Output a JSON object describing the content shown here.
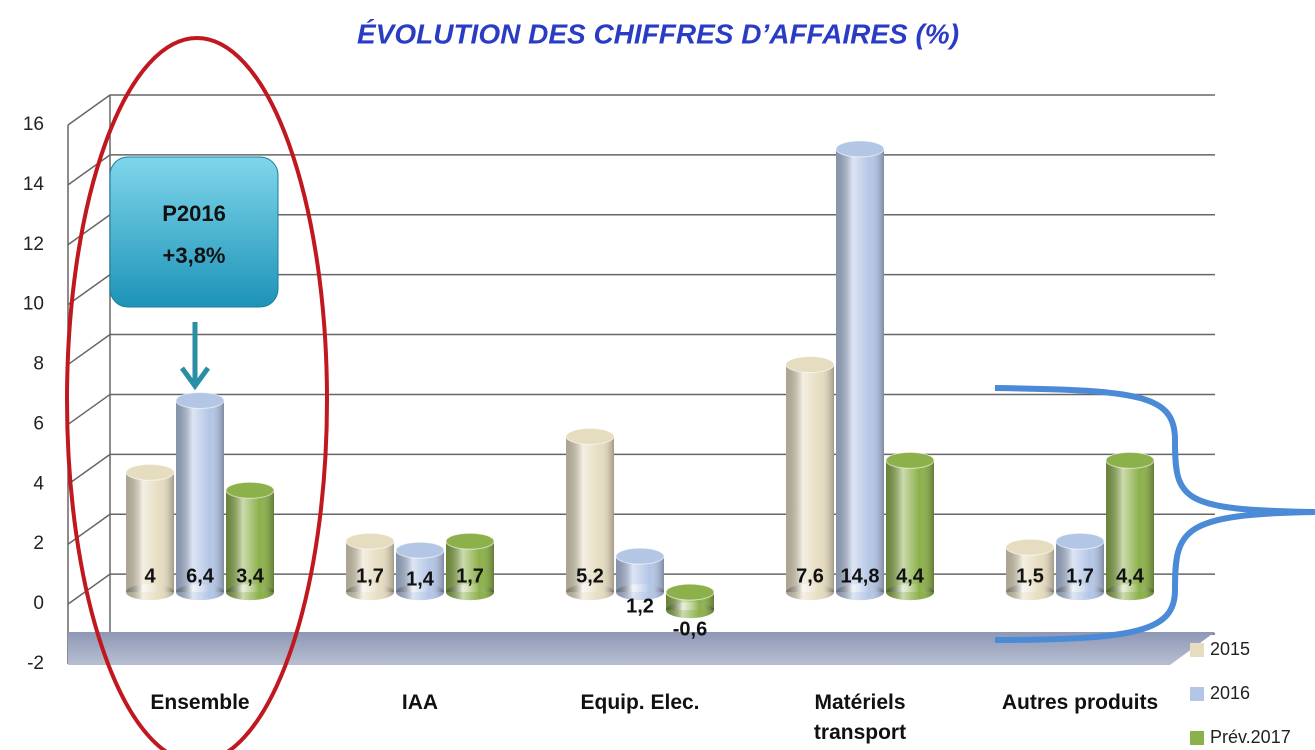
{
  "chart_data": {
    "type": "bar",
    "title": "ÉVOLUTION DES CHIFFRES D’AFFAIRES (%)",
    "categories": [
      "Ensemble",
      "IAA",
      "Equip. Elec.",
      "Matériels transport",
      "Autres produits"
    ],
    "series": [
      {
        "name": "2015",
        "color": "#e6dcc0",
        "values": [
          4,
          1.7,
          5.2,
          7.6,
          1.5
        ],
        "value_labels": [
          "4",
          "1,7",
          "5,2",
          "7,6",
          "1,5"
        ]
      },
      {
        "name": "2016",
        "color": "#b4c6e6",
        "values": [
          6.4,
          1.4,
          1.2,
          14.8,
          1.7
        ],
        "value_labels": [
          "6,4",
          "1,4",
          "1,2",
          "14,8",
          "1,7"
        ]
      },
      {
        "name": "Prév.2017",
        "color": "#8cb04a",
        "values": [
          3.4,
          1.7,
          -0.6,
          4.4,
          4.4
        ],
        "value_labels": [
          "3,4",
          "1,7",
          "-0,6",
          "4,4",
          "4,4"
        ]
      }
    ],
    "ylim": [
      -2,
      16
    ],
    "yticks": [
      -2,
      0,
      2,
      4,
      6,
      8,
      10,
      12,
      14,
      16
    ],
    "grid": true,
    "legend": "bottom-right",
    "annotation": {
      "line1": "P2016",
      "line2": "+3,8%"
    }
  }
}
